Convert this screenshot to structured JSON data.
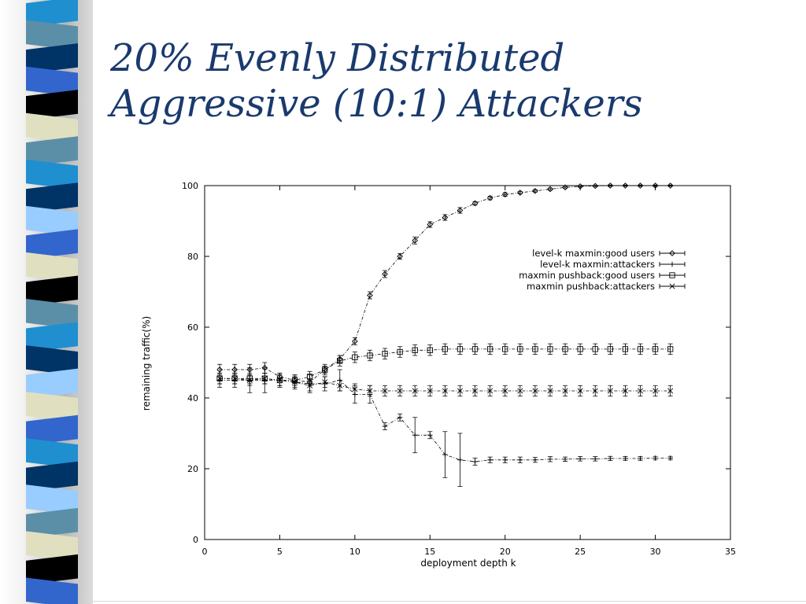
{
  "slide": {
    "title_line1": "20% Evenly Distributed",
    "title_line2": "Aggressive (10:1) Attackers"
  },
  "colors": {
    "title": "#1a3a6e",
    "stripes": [
      "#1f8fd0",
      "#5b8fa8",
      "#003366",
      "#3366cc",
      "#000000",
      "#e0e0c0",
      "#99ccff"
    ]
  },
  "chart_data": {
    "type": "line",
    "xlabel": "deployment depth k",
    "ylabel": "remaining traffic(%)",
    "xlim": [
      0,
      35
    ],
    "ylim": [
      0,
      100
    ],
    "xticks": [
      0,
      5,
      10,
      15,
      20,
      25,
      30,
      35
    ],
    "yticks": [
      0,
      20,
      40,
      60,
      80,
      100
    ],
    "grid": false,
    "legend_position": "right, upper-middle",
    "x": [
      1,
      2,
      3,
      4,
      5,
      6,
      7,
      8,
      9,
      10,
      11,
      12,
      13,
      14,
      15,
      16,
      17,
      18,
      19,
      20,
      21,
      22,
      23,
      24,
      25,
      26,
      27,
      28,
      29,
      30,
      31
    ],
    "series": [
      {
        "name": "level-k maxmin:good users",
        "marker": "diamond",
        "values": [
          48,
          48,
          48,
          48.5,
          46,
          45,
          44.5,
          48,
          51,
          56,
          69,
          75,
          80,
          84.5,
          89,
          91,
          93,
          95,
          96.5,
          97.5,
          98,
          98.5,
          99,
          99.5,
          99.8,
          99.9,
          100,
          100,
          100,
          100,
          100
        ],
        "errors": [
          1.5,
          1.5,
          1.5,
          1.5,
          1,
          1,
          1,
          1,
          1,
          1,
          1,
          1,
          0.8,
          1,
          0.8,
          0.8,
          0.8,
          0.5,
          0.5,
          0.5,
          0.3,
          0.3,
          0.3,
          0.2,
          0.2,
          0.2,
          0.2,
          0.2,
          0.2,
          0.2,
          0.2
        ]
      },
      {
        "name": "level-k maxmin:attackers",
        "marker": "plus",
        "values": [
          45,
          45,
          45,
          45,
          45,
          44.5,
          44,
          44,
          45,
          41,
          41,
          32,
          34.5,
          29.5,
          29.5,
          24,
          22.5,
          22,
          22.5,
          22.5,
          22.5,
          22.5,
          22.7,
          22.7,
          22.8,
          22.8,
          22.9,
          22.9,
          22.9,
          23,
          23
        ],
        "errors": [
          2,
          2,
          3.5,
          3.5,
          2,
          2,
          2.5,
          2,
          3,
          2.5,
          2.5,
          1,
          1,
          5,
          1,
          6.5,
          7.5,
          1,
          0.8,
          0.8,
          0.8,
          0.7,
          0.7,
          0.6,
          0.6,
          0.6,
          0.6,
          0.5,
          0.5,
          0.5,
          0.5
        ]
      },
      {
        "name": "maxmin pushback:good users",
        "marker": "square",
        "values": [
          45.5,
          45.5,
          45.5,
          45.5,
          45,
          45,
          46,
          48,
          50.5,
          51.5,
          52,
          52.5,
          53,
          53.5,
          53.5,
          53.8,
          53.8,
          53.8,
          53.8,
          53.8,
          53.8,
          53.8,
          53.8,
          53.8,
          53.8,
          53.8,
          53.8,
          53.8,
          53.8,
          53.8,
          53.8
        ],
        "errors": [
          1.5,
          1.5,
          1.5,
          1.5,
          1.5,
          1.5,
          1.5,
          1.5,
          1.5,
          1.5,
          1.5,
          1.5,
          1.5,
          1.5,
          1.5,
          1.5,
          1.5,
          1.5,
          1.5,
          1.5,
          1.5,
          1.5,
          1.5,
          1.5,
          1.5,
          1.5,
          1.5,
          1.5,
          1.5,
          1.5,
          1.5
        ]
      },
      {
        "name": "maxmin pushback:attackers",
        "marker": "cross",
        "values": [
          45.5,
          45.5,
          45,
          45.5,
          45,
          44.5,
          43.5,
          44.5,
          43.5,
          42.5,
          42,
          42,
          42,
          42,
          42,
          42,
          42,
          42,
          42,
          42,
          42,
          42,
          42,
          42,
          42,
          42,
          42,
          42,
          42,
          42,
          42
        ],
        "errors": [
          1.5,
          1.5,
          1.5,
          1.5,
          1.5,
          1.5,
          1.5,
          1.5,
          1.5,
          1.5,
          1.5,
          1.5,
          1.5,
          1.5,
          1.5,
          1.5,
          1.5,
          1.5,
          1.5,
          1.5,
          1.5,
          1.5,
          1.5,
          1.5,
          1.5,
          1.5,
          1.5,
          1.5,
          1.5,
          1.5,
          1.5
        ]
      }
    ]
  }
}
